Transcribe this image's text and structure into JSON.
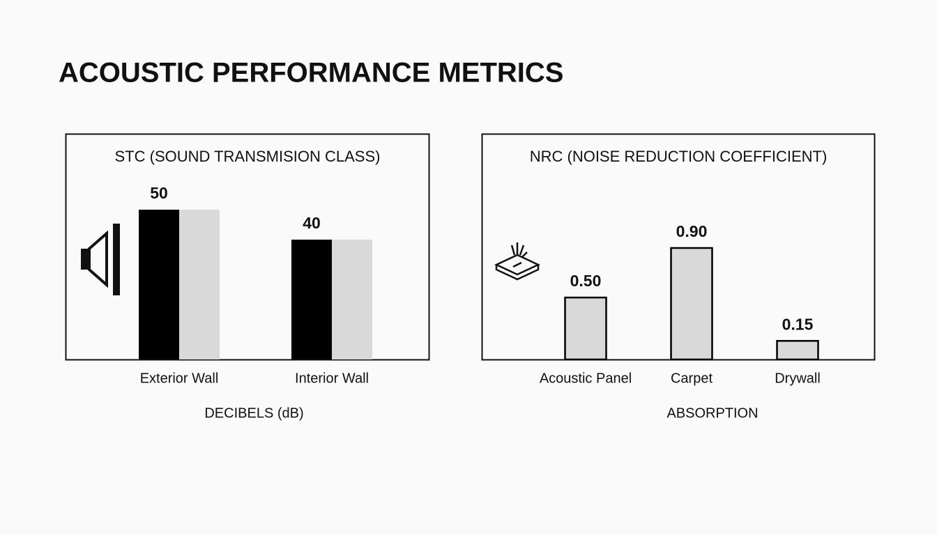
{
  "title": "ACOUSTIC PERFORMANCE METRICS",
  "chart_data": [
    {
      "type": "bar",
      "title": "STC (SOUND TRANSMISION CLASS)",
      "categories": [
        "Exterior Wall",
        "Interior Wall"
      ],
      "values": [
        50,
        40
      ],
      "xlabel": "DECIBELS (dB)",
      "colors": [
        "#000000",
        "#d9d9d9"
      ]
    },
    {
      "type": "bar",
      "title": "NRC (NOISE REDUCTION COEFFICIENT)",
      "categories": [
        "Acoustic Panel",
        "Carpet",
        "Drywall"
      ],
      "values": [
        0.5,
        0.9,
        0.15
      ],
      "value_labels": [
        "0.50",
        "0.90",
        "0.15"
      ],
      "xlabel": "ABSORPTION",
      "colors": [
        "#d9d9d9"
      ],
      "edgecolor": "#000000"
    }
  ]
}
